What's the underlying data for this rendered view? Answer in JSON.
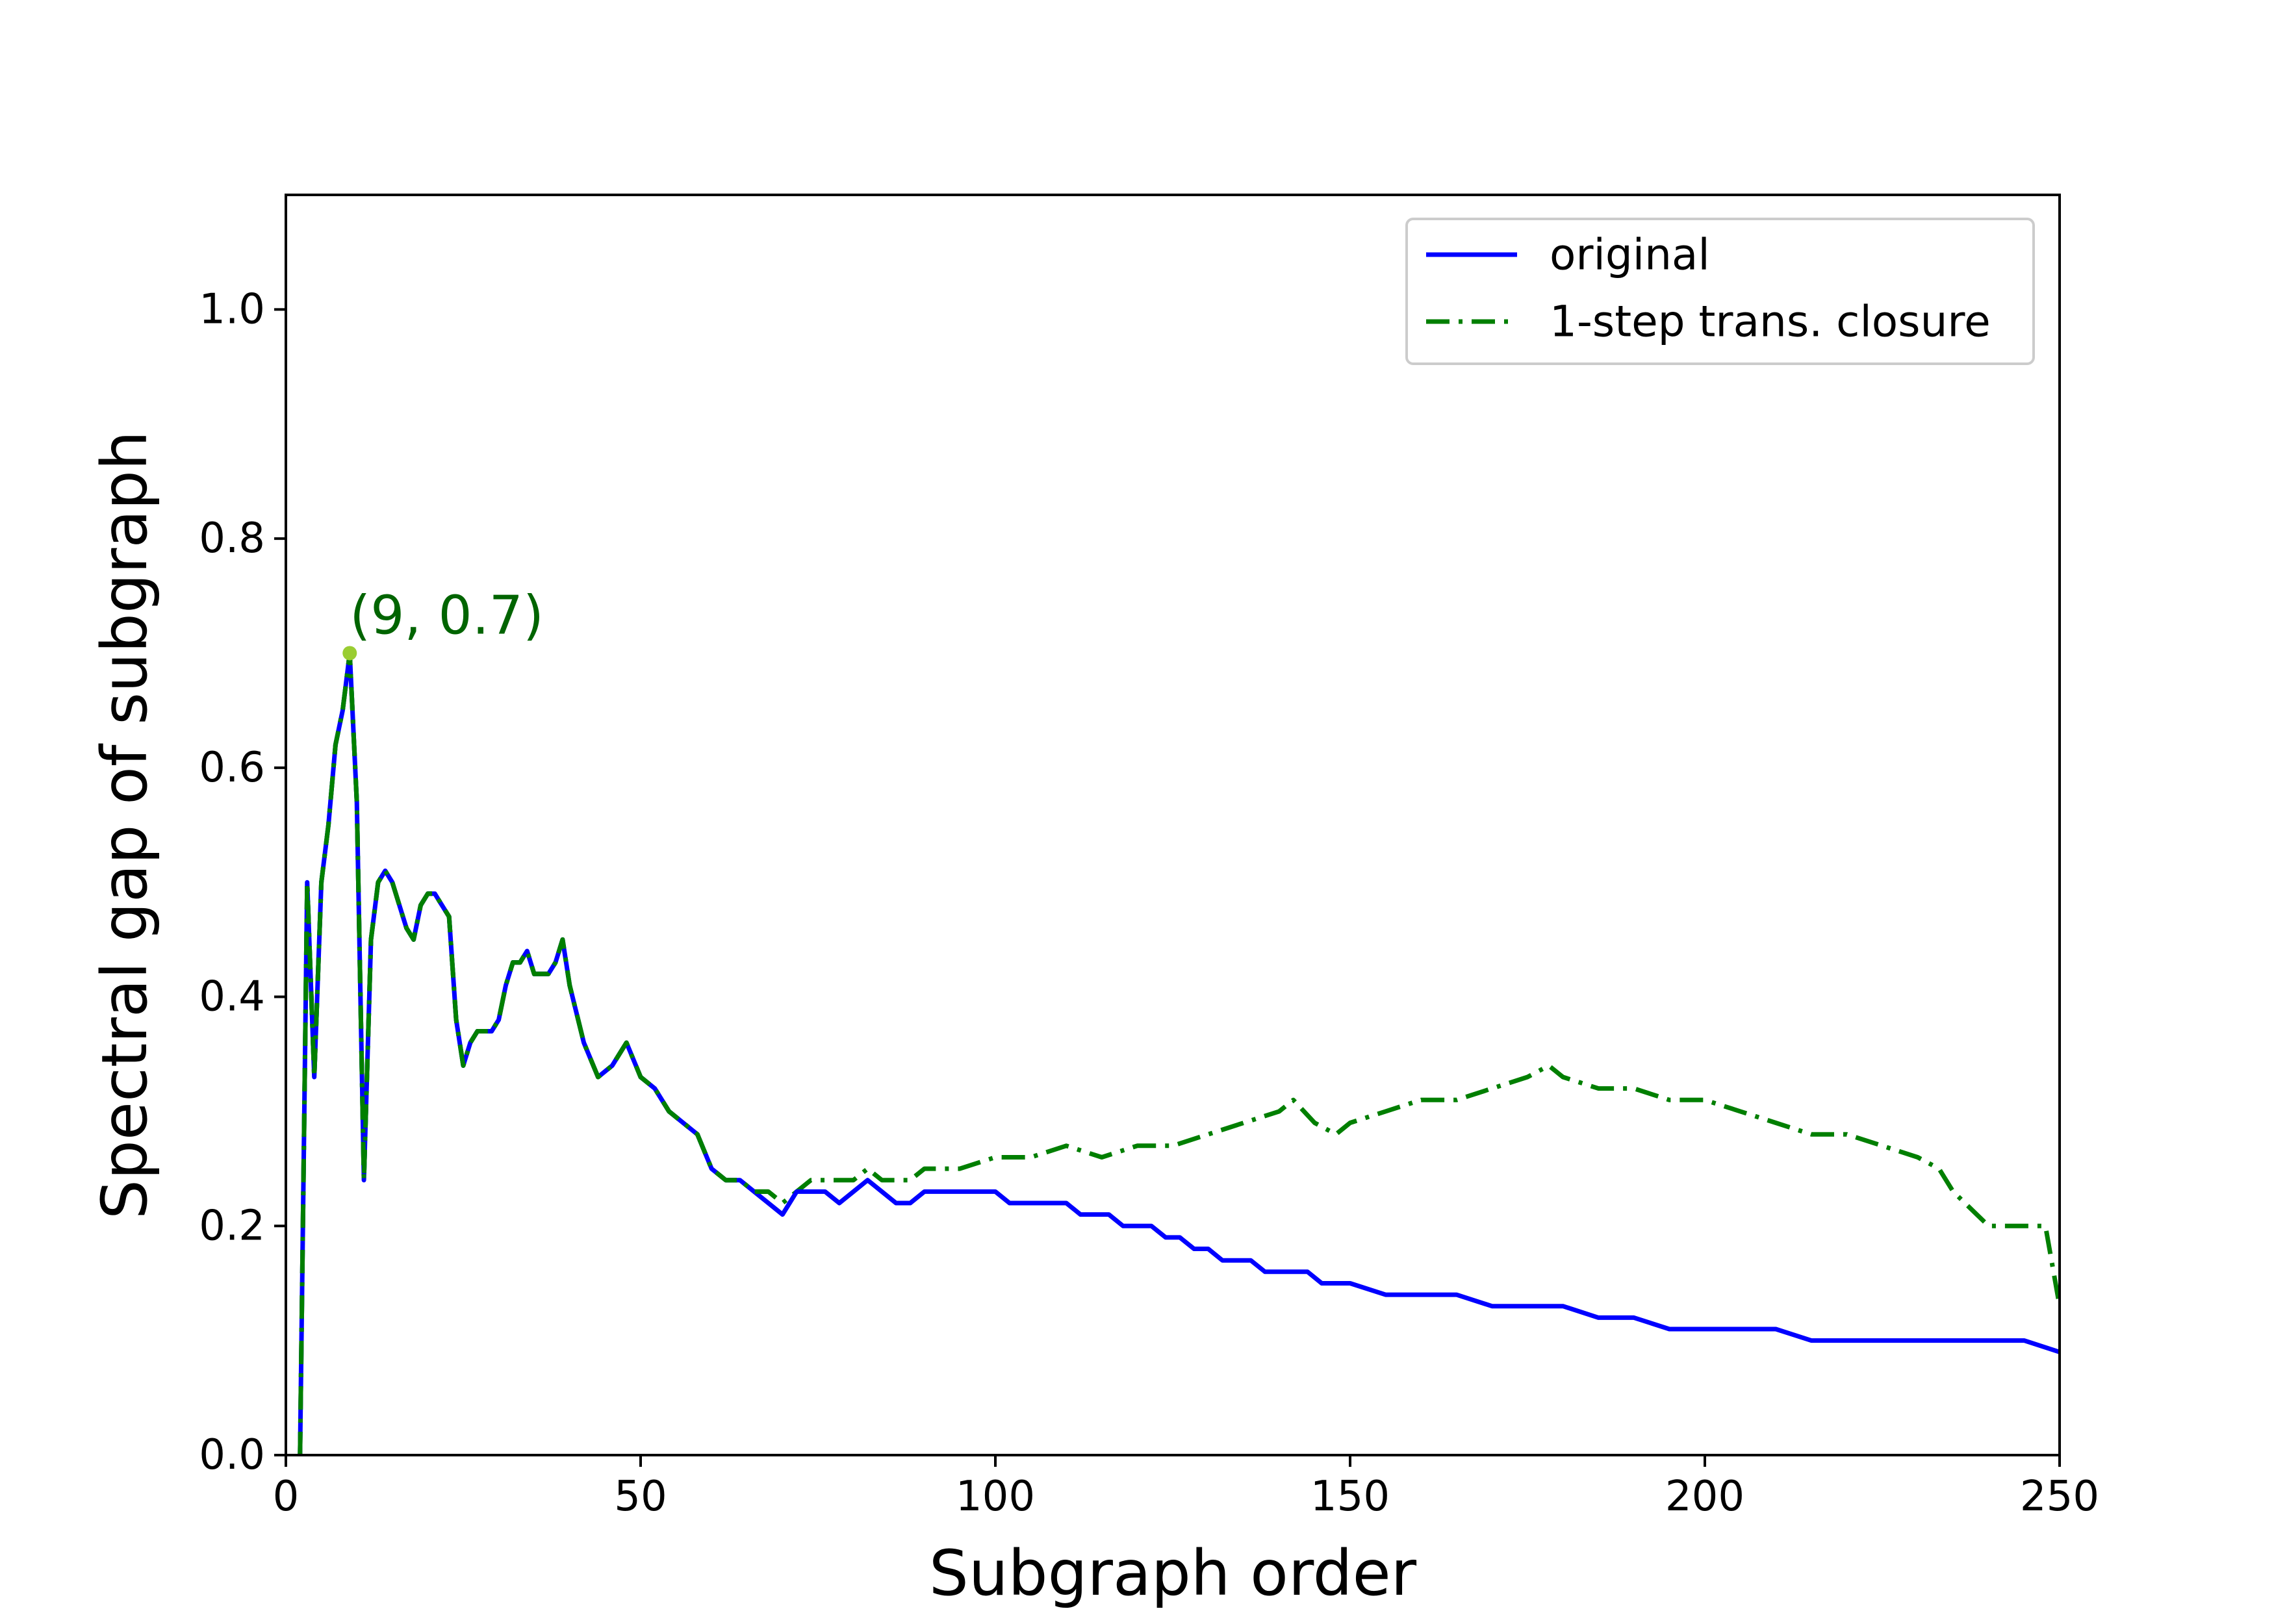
{
  "colors": {
    "original": "#0000ff",
    "closure": "#007f00",
    "marker": "#9acd32",
    "annotation": "#006400",
    "axis": "#000000",
    "legend_border": "#cccccc"
  },
  "chart_data": {
    "type": "line",
    "title": "",
    "xlabel": "Subgraph order",
    "ylabel": "Spectral gap of subgraph",
    "xlim": [
      0,
      250
    ],
    "ylim": [
      0,
      1.1
    ],
    "grid": false,
    "legend_position": "top-right",
    "xticks": [
      "0",
      "50",
      "100",
      "150",
      "200",
      "250"
    ],
    "yticks": [
      "0.0",
      "0.2",
      "0.4",
      "0.6",
      "0.8",
      "1.0"
    ],
    "annotation": {
      "text": "(9, 0.7)",
      "x": 9,
      "y": 0.7
    },
    "series": [
      {
        "name": "original",
        "style": "solid",
        "color": "#0000ff",
        "x": [
          2,
          3,
          4,
          5,
          6,
          7,
          8,
          9,
          10,
          11,
          12,
          13,
          14,
          15,
          16,
          17,
          18,
          19,
          20,
          21,
          22,
          23,
          24,
          25,
          26,
          27,
          28,
          29,
          30,
          31,
          32,
          33,
          34,
          35,
          36,
          37,
          38,
          39,
          40,
          42,
          44,
          46,
          48,
          50,
          52,
          54,
          56,
          58,
          60,
          62,
          64,
          66,
          68,
          70,
          72,
          74,
          76,
          78,
          80,
          82,
          84,
          86,
          88,
          90,
          92,
          94,
          96,
          98,
          100,
          102,
          104,
          106,
          108,
          110,
          112,
          114,
          116,
          118,
          120,
          122,
          124,
          126,
          128,
          130,
          132,
          134,
          136,
          138,
          140,
          142,
          144,
          146,
          148,
          150,
          155,
          160,
          165,
          170,
          175,
          180,
          185,
          190,
          195,
          200,
          205,
          210,
          215,
          220,
          225,
          230,
          235,
          240,
          245,
          250
        ],
        "y": [
          0.0,
          0.5,
          0.33,
          0.5,
          0.55,
          0.62,
          0.65,
          0.7,
          0.57,
          0.24,
          0.45,
          0.5,
          0.51,
          0.5,
          0.48,
          0.46,
          0.45,
          0.48,
          0.49,
          0.49,
          0.48,
          0.47,
          0.38,
          0.34,
          0.36,
          0.37,
          0.37,
          0.37,
          0.38,
          0.41,
          0.43,
          0.43,
          0.44,
          0.42,
          0.42,
          0.42,
          0.43,
          0.45,
          0.41,
          0.36,
          0.33,
          0.34,
          0.36,
          0.33,
          0.32,
          0.3,
          0.29,
          0.28,
          0.25,
          0.24,
          0.24,
          0.23,
          0.22,
          0.21,
          0.23,
          0.23,
          0.23,
          0.22,
          0.23,
          0.24,
          0.23,
          0.22,
          0.22,
          0.23,
          0.23,
          0.23,
          0.23,
          0.23,
          0.23,
          0.22,
          0.22,
          0.22,
          0.22,
          0.22,
          0.21,
          0.21,
          0.21,
          0.2,
          0.2,
          0.2,
          0.19,
          0.19,
          0.18,
          0.18,
          0.17,
          0.17,
          0.17,
          0.16,
          0.16,
          0.16,
          0.16,
          0.15,
          0.15,
          0.15,
          0.14,
          0.14,
          0.14,
          0.13,
          0.13,
          0.13,
          0.12,
          0.12,
          0.11,
          0.11,
          0.11,
          0.11,
          0.1,
          0.1,
          0.1,
          0.1,
          0.1,
          0.1,
          0.1,
          0.09
        ]
      },
      {
        "name": "1-step trans. closure",
        "style": "dashdot",
        "color": "#007f00",
        "x": [
          2,
          3,
          4,
          5,
          6,
          7,
          8,
          9,
          10,
          11,
          12,
          13,
          14,
          15,
          16,
          17,
          18,
          19,
          20,
          21,
          22,
          23,
          24,
          25,
          26,
          27,
          28,
          29,
          30,
          31,
          32,
          33,
          34,
          35,
          36,
          37,
          38,
          39,
          40,
          42,
          44,
          46,
          48,
          50,
          52,
          54,
          56,
          58,
          60,
          62,
          64,
          66,
          68,
          70,
          72,
          74,
          76,
          78,
          80,
          82,
          84,
          86,
          88,
          90,
          95,
          100,
          105,
          110,
          115,
          120,
          125,
          130,
          135,
          140,
          142,
          145,
          148,
          150,
          155,
          160,
          165,
          170,
          175,
          178,
          180,
          185,
          190,
          195,
          200,
          205,
          210,
          215,
          220,
          225,
          230,
          233,
          235,
          240,
          245,
          248,
          250
        ],
        "y": [
          0.0,
          0.5,
          0.33,
          0.5,
          0.55,
          0.62,
          0.65,
          0.7,
          0.57,
          0.24,
          0.45,
          0.5,
          0.51,
          0.5,
          0.48,
          0.46,
          0.45,
          0.48,
          0.49,
          0.49,
          0.48,
          0.47,
          0.38,
          0.34,
          0.36,
          0.37,
          0.37,
          0.37,
          0.38,
          0.41,
          0.43,
          0.43,
          0.44,
          0.42,
          0.42,
          0.42,
          0.43,
          0.45,
          0.41,
          0.36,
          0.33,
          0.34,
          0.36,
          0.33,
          0.32,
          0.3,
          0.29,
          0.28,
          0.25,
          0.24,
          0.24,
          0.23,
          0.23,
          0.22,
          0.23,
          0.24,
          0.24,
          0.24,
          0.24,
          0.25,
          0.24,
          0.24,
          0.24,
          0.25,
          0.25,
          0.26,
          0.26,
          0.27,
          0.26,
          0.27,
          0.27,
          0.28,
          0.29,
          0.3,
          0.31,
          0.29,
          0.28,
          0.29,
          0.3,
          0.31,
          0.31,
          0.32,
          0.33,
          0.34,
          0.33,
          0.32,
          0.32,
          0.31,
          0.31,
          0.3,
          0.29,
          0.28,
          0.28,
          0.27,
          0.26,
          0.25,
          0.23,
          0.2,
          0.2,
          0.2,
          0.13
        ]
      }
    ]
  }
}
